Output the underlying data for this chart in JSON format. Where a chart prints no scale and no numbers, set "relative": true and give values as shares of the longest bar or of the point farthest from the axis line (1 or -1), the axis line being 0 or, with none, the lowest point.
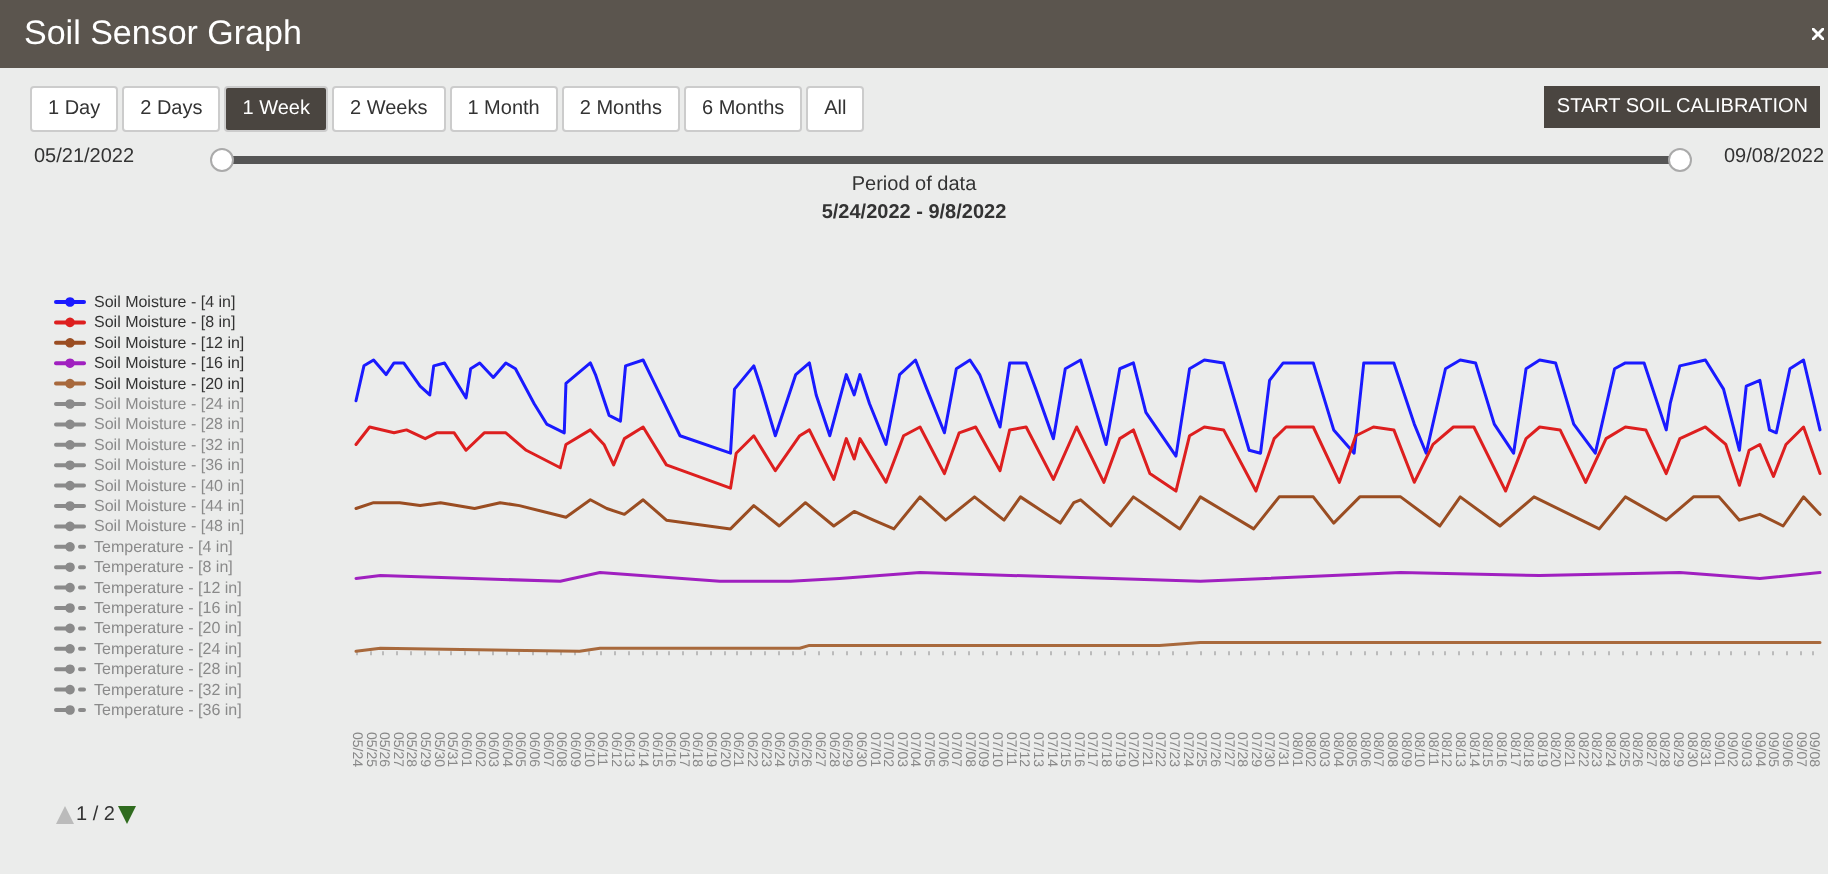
{
  "chart_data": {
    "type": "line",
    "title": "Soil Sensor Graph",
    "subtitle": "Period of data",
    "relative": true,
    "legend": "left",
    "grid": false,
    "marker": "none",
    "line_style": "solid",
    "annotations": [
      "1 Day",
      "2 Days",
      "1 Week",
      "2 Weeks",
      "1 Month",
      "2 Months",
      "6 Months",
      "All",
      "START SOIL CALIBRATION",
      "05/21/2022",
      "09/08/2022",
      "5/24/2022 - 9/8/2022",
      "1 / 2"
    ],
    "xlim": [
      "2022-05-24",
      "2022-09-08T12:00"
    ],
    "xticks": [
      {
        "value": "2022-05-24",
        "label": "05/24"
      },
      {
        "value": "2022-05-25",
        "label": "05/25"
      },
      {
        "value": "2022-05-26",
        "label": "05/26"
      },
      {
        "value": "2022-05-27",
        "label": "05/27"
      },
      {
        "value": "2022-05-28",
        "label": "05/28"
      },
      {
        "value": "2022-05-29",
        "label": "05/29"
      },
      {
        "value": "2022-05-30",
        "label": "05/30"
      },
      {
        "value": "2022-05-31",
        "label": "05/31"
      },
      {
        "value": "2022-06-01",
        "label": "06/01"
      },
      {
        "value": "2022-06-02",
        "label": "06/02"
      },
      {
        "value": "2022-06-03",
        "label": "06/03"
      },
      {
        "value": "2022-06-04",
        "label": "06/04"
      },
      {
        "value": "2022-06-05",
        "label": "06/05"
      },
      {
        "value": "2022-06-06",
        "label": "06/06"
      },
      {
        "value": "2022-06-07",
        "label": "06/07"
      },
      {
        "value": "2022-06-08",
        "label": "06/08"
      },
      {
        "value": "2022-06-09",
        "label": "06/09"
      },
      {
        "value": "2022-06-10",
        "label": "06/10"
      },
      {
        "value": "2022-06-11",
        "label": "06/11"
      },
      {
        "value": "2022-06-12",
        "label": "06/12"
      },
      {
        "value": "2022-06-13",
        "label": "06/13"
      },
      {
        "value": "2022-06-14",
        "label": "06/14"
      },
      {
        "value": "2022-06-15",
        "label": "06/15"
      },
      {
        "value": "2022-06-16",
        "label": "06/16"
      },
      {
        "value": "2022-06-17",
        "label": "06/17"
      },
      {
        "value": "2022-06-18",
        "label": "06/18"
      },
      {
        "value": "2022-06-19",
        "label": "06/19"
      },
      {
        "value": "2022-06-20",
        "label": "06/20"
      },
      {
        "value": "2022-06-21",
        "label": "06/21"
      },
      {
        "value": "2022-06-22",
        "label": "06/22"
      },
      {
        "value": "2022-06-23",
        "label": "06/23"
      },
      {
        "value": "2022-06-24",
        "label": "06/24"
      },
      {
        "value": "2022-06-25",
        "label": "06/25"
      },
      {
        "value": "2022-06-26",
        "label": "06/26"
      },
      {
        "value": "2022-06-27",
        "label": "06/27"
      },
      {
        "value": "2022-06-28",
        "label": "06/28"
      },
      {
        "value": "2022-06-29",
        "label": "06/29"
      },
      {
        "value": "2022-06-30",
        "label": "06/30"
      },
      {
        "value": "2022-07-01",
        "label": "07/01"
      },
      {
        "value": "2022-07-02",
        "label": "07/02"
      },
      {
        "value": "2022-07-03",
        "label": "07/03"
      },
      {
        "value": "2022-07-04",
        "label": "07/04"
      },
      {
        "value": "2022-07-05",
        "label": "07/05"
      },
      {
        "value": "2022-07-06",
        "label": "07/06"
      },
      {
        "value": "2022-07-07",
        "label": "07/07"
      },
      {
        "value": "2022-07-08",
        "label": "07/08"
      },
      {
        "value": "2022-07-09",
        "label": "07/09"
      },
      {
        "value": "2022-07-10",
        "label": "07/10"
      },
      {
        "value": "2022-07-11",
        "label": "07/11"
      },
      {
        "value": "2022-07-12",
        "label": "07/12"
      },
      {
        "value": "2022-07-13",
        "label": "07/13"
      },
      {
        "value": "2022-07-14",
        "label": "07/14"
      },
      {
        "value": "2022-07-15",
        "label": "07/15"
      },
      {
        "value": "2022-07-16",
        "label": "07/16"
      },
      {
        "value": "2022-07-17",
        "label": "07/17"
      },
      {
        "value": "2022-07-18",
        "label": "07/18"
      },
      {
        "value": "2022-07-19",
        "label": "07/19"
      },
      {
        "value": "2022-07-20",
        "label": "07/20"
      },
      {
        "value": "2022-07-21",
        "label": "07/21"
      },
      {
        "value": "2022-07-22",
        "label": "07/22"
      },
      {
        "value": "2022-07-23",
        "label": "07/23"
      },
      {
        "value": "2022-07-24",
        "label": "07/24"
      },
      {
        "value": "2022-07-25",
        "label": "07/25"
      },
      {
        "value": "2022-07-26",
        "label": "07/26"
      },
      {
        "value": "2022-07-27",
        "label": "07/27"
      },
      {
        "value": "2022-07-28",
        "label": "07/28"
      },
      {
        "value": "2022-07-29",
        "label": "07/29"
      },
      {
        "value": "2022-07-30",
        "label": "07/30"
      },
      {
        "value": "2022-07-31",
        "label": "07/31"
      },
      {
        "value": "2022-08-01",
        "label": "08/01"
      },
      {
        "value": "2022-08-02",
        "label": "08/02"
      },
      {
        "value": "2022-08-03",
        "label": "08/03"
      },
      {
        "value": "2022-08-04",
        "label": "08/04"
      },
      {
        "value": "2022-08-05",
        "label": "08/05"
      },
      {
        "value": "2022-08-06",
        "label": "08/06"
      },
      {
        "value": "2022-08-07",
        "label": "08/07"
      },
      {
        "value": "2022-08-08",
        "label": "08/08"
      },
      {
        "value": "2022-08-09",
        "label": "08/09"
      },
      {
        "value": "2022-08-10",
        "label": "08/10"
      },
      {
        "value": "2022-08-11",
        "label": "08/11"
      },
      {
        "value": "2022-08-12",
        "label": "08/12"
      },
      {
        "value": "2022-08-13",
        "label": "08/13"
      },
      {
        "value": "2022-08-14",
        "label": "08/14"
      },
      {
        "value": "2022-08-15",
        "label": "08/15"
      },
      {
        "value": "2022-08-16",
        "label": "08/16"
      },
      {
        "value": "2022-08-17",
        "label": "08/17"
      },
      {
        "value": "2022-08-18",
        "label": "08/18"
      },
      {
        "value": "2022-08-19",
        "label": "08/19"
      },
      {
        "value": "2022-08-20",
        "label": "08/20"
      },
      {
        "value": "2022-08-21",
        "label": "08/21"
      },
      {
        "value": "2022-08-22",
        "label": "08/22"
      },
      {
        "value": "2022-08-23",
        "label": "08/23"
      },
      {
        "value": "2022-08-24",
        "label": "08/24"
      },
      {
        "value": "2022-08-25",
        "label": "08/25"
      },
      {
        "value": "2022-08-26",
        "label": "08/26"
      },
      {
        "value": "2022-08-27",
        "label": "08/27"
      },
      {
        "value": "2022-08-28",
        "label": "08/28"
      },
      {
        "value": "2022-08-29",
        "label": "08/29"
      },
      {
        "value": "2022-08-30",
        "label": "08/30"
      },
      {
        "value": "2022-08-31",
        "label": "08/31"
      },
      {
        "value": "2022-09-01",
        "label": "09/01"
      },
      {
        "value": "2022-09-02",
        "label": "09/02"
      },
      {
        "value": "2022-09-03",
        "label": "09/03"
      },
      {
        "value": "2022-09-04",
        "label": "09/04"
      },
      {
        "value": "2022-09-05",
        "label": "09/05"
      },
      {
        "value": "2022-09-06",
        "label": "09/06"
      },
      {
        "value": "2022-09-07",
        "label": "09/07"
      },
      {
        "value": "2022-09-08",
        "label": "09/08"
      }
    ],
    "series": [
      {
        "name": "Soil Moisture - [4 in]",
        "color": "#1a1aff",
        "x": [
          "2022-05-24T00:00",
          "2022-05-24T14:00",
          "2022-05-25T07:00",
          "2022-05-26T05:00",
          "2022-05-26T19:00",
          "2022-05-27T12:00",
          "2022-05-28T17:00",
          "2022-05-29T10:00",
          "2022-05-29T17:00",
          "2022-05-30T12:00",
          "2022-05-31T07:00",
          "2022-06-01T02:00",
          "2022-06-01T10:00",
          "2022-06-02T02:00",
          "2022-06-03T02:00",
          "2022-06-04T00:00",
          "2022-06-04T17:00",
          "2022-06-06T02:00",
          "2022-06-07T00:00",
          "2022-06-08T07:00",
          "2022-06-08T10:00",
          "2022-06-10T05:00",
          "2022-06-10T14:00",
          "2022-06-11T14:00",
          "2022-06-12T10:00",
          "2022-06-12T19:00",
          "2022-06-14T02:00",
          "2022-06-14T22:00",
          "2022-06-16T19:00",
          "2022-06-20T12:00",
          "2022-06-20T19:00",
          "2022-06-22T05:00",
          "2022-06-22T17:00",
          "2022-06-23T19:00",
          "2022-06-25T07:00",
          "2022-06-26T07:00",
          "2022-06-26T19:00",
          "2022-06-27T19:00",
          "2022-06-29T00:00",
          "2022-06-29T14:00",
          "2022-06-30T00:00",
          "2022-06-30T17:00",
          "2022-07-01T22:00",
          "2022-07-02T22:00",
          "2022-07-04T02:00",
          "2022-07-04T22:00",
          "2022-07-06T05:00",
          "2022-07-07T02:00",
          "2022-07-08T02:00",
          "2022-07-08T19:00",
          "2022-07-10T07:00",
          "2022-07-11T00:00",
          "2022-07-12T05:00",
          "2022-07-12T22:00",
          "2022-07-14T05:00",
          "2022-07-15T02:00",
          "2022-07-16T05:00",
          "2022-07-18T02:00",
          "2022-07-19T02:00",
          "2022-07-20T02:00",
          "2022-07-21T00:00",
          "2022-07-23T05:00",
          "2022-07-24T05:00",
          "2022-07-25T07:00",
          "2022-07-26T17:00",
          "2022-07-28T14:00",
          "2022-07-29T10:00",
          "2022-07-30T02:00",
          "2022-07-31T02:00",
          "2022-08-02T07:00",
          "2022-08-03T19:00",
          "2022-08-05T07:00",
          "2022-08-06T00:00",
          "2022-08-08T05:00",
          "2022-08-09T17:00",
          "2022-08-10T14:00",
          "2022-08-12T00:00",
          "2022-08-13T02:00",
          "2022-08-14T05:00",
          "2022-08-15T14:00",
          "2022-08-17T00:00",
          "2022-08-17T22:00",
          "2022-08-18T22:00",
          "2022-08-20T02:00",
          "2022-08-21T10:00",
          "2022-08-23T00:00",
          "2022-08-24T10:00",
          "2022-08-25T05:00",
          "2022-08-26T14:00",
          "2022-08-28T05:00",
          "2022-08-28T12:00",
          "2022-08-29T05:00",
          "2022-08-31T02:00",
          "2022-09-01T10:00",
          "2022-09-02T14:00",
          "2022-09-03T02:00",
          "2022-09-04T02:00",
          "2022-09-04T19:00",
          "2022-09-05T07:00",
          "2022-09-06T07:00",
          "2022-09-07T07:00",
          "2022-09-08T12:00"
        ],
        "values": [
          0.86,
          0.98,
          1.0,
          0.95,
          0.99,
          0.99,
          0.91,
          0.88,
          0.98,
          0.99,
          0.93,
          0.87,
          0.97,
          0.99,
          0.94,
          0.99,
          0.97,
          0.85,
          0.78,
          0.75,
          0.92,
          0.99,
          0.95,
          0.81,
          0.79,
          0.98,
          1.0,
          0.92,
          0.74,
          0.68,
          0.9,
          0.98,
          0.91,
          0.74,
          0.95,
          0.99,
          0.88,
          0.74,
          0.95,
          0.88,
          0.95,
          0.85,
          0.71,
          0.95,
          1.0,
          0.9,
          0.75,
          0.97,
          1.0,
          0.95,
          0.77,
          0.99,
          0.99,
          0.9,
          0.73,
          0.97,
          1.0,
          0.71,
          0.97,
          0.99,
          0.82,
          0.67,
          0.97,
          1.0,
          0.99,
          0.69,
          0.68,
          0.93,
          0.99,
          0.99,
          0.76,
          0.68,
          0.99,
          0.99,
          0.78,
          0.68,
          0.97,
          1.0,
          0.99,
          0.78,
          0.68,
          0.97,
          1.0,
          0.99,
          0.78,
          0.68,
          0.97,
          0.99,
          0.99,
          0.76,
          0.85,
          0.98,
          1.0,
          0.9,
          0.69,
          0.91,
          0.93,
          0.76,
          0.75,
          0.97,
          1.0,
          0.76
        ]
      },
      {
        "name": "Soil Moisture - [8 in]",
        "color": "#dd1f1f",
        "x": [
          "2022-05-24T00:00",
          "2022-05-25T00:00",
          "2022-05-26T19:00",
          "2022-05-27T17:00",
          "2022-05-29T02:00",
          "2022-05-29T22:00",
          "2022-05-31T05:00",
          "2022-06-01T02:00",
          "2022-06-02T10:00",
          "2022-06-04T00:00",
          "2022-06-05T12:00",
          "2022-06-08T00:00",
          "2022-06-08T10:00",
          "2022-06-10T05:00",
          "2022-06-11T05:00",
          "2022-06-11T22:00",
          "2022-06-12T17:00",
          "2022-06-14T02:00",
          "2022-06-15T19:00",
          "2022-06-20T12:00",
          "2022-06-20T22:00",
          "2022-06-22T05:00",
          "2022-06-23T19:00",
          "2022-06-25T14:00",
          "2022-06-26T07:00",
          "2022-06-28T02:00",
          "2022-06-29T00:00",
          "2022-06-29T14:00",
          "2022-06-30T00:00",
          "2022-07-01T22:00",
          "2022-07-03T05:00",
          "2022-07-04T10:00",
          "2022-07-06T05:00",
          "2022-07-07T07:00",
          "2022-07-08T12:00",
          "2022-07-10T07:00",
          "2022-07-11T00:00",
          "2022-07-12T05:00",
          "2022-07-14T05:00",
          "2022-07-15T22:00",
          "2022-07-17T22:00",
          "2022-07-19T02:00",
          "2022-07-20T02:00",
          "2022-07-21T07:00",
          "2022-07-23T05:00",
          "2022-07-24T05:00",
          "2022-07-25T07:00",
          "2022-07-26T17:00",
          "2022-07-29T02:00",
          "2022-07-30T10:00",
          "2022-07-31T07:00",
          "2022-08-02T07:00",
          "2022-08-04T05:00",
          "2022-08-05T10:00",
          "2022-08-06T17:00",
          "2022-08-08T05:00",
          "2022-08-09T17:00",
          "2022-08-11T02:00",
          "2022-08-12T14:00",
          "2022-08-14T02:00",
          "2022-08-16T10:00",
          "2022-08-17T22:00",
          "2022-08-18T22:00",
          "2022-08-20T10:00",
          "2022-08-22T07:00",
          "2022-08-23T19:00",
          "2022-08-25T05:00",
          "2022-08-26T17:00",
          "2022-08-28T05:00",
          "2022-08-29T05:00",
          "2022-08-31T02:00",
          "2022-09-01T14:00",
          "2022-09-02T14:00",
          "2022-09-03T07:00",
          "2022-09-04T02:00",
          "2022-09-05T02:00",
          "2022-09-06T00:00",
          "2022-09-07T07:00",
          "2022-09-08T12:00"
        ],
        "values": [
          0.71,
          0.77,
          0.75,
          0.76,
          0.73,
          0.75,
          0.75,
          0.69,
          0.75,
          0.75,
          0.69,
          0.63,
          0.71,
          0.76,
          0.71,
          0.64,
          0.73,
          0.77,
          0.64,
          0.56,
          0.68,
          0.74,
          0.62,
          0.74,
          0.76,
          0.59,
          0.73,
          0.66,
          0.73,
          0.58,
          0.74,
          0.77,
          0.61,
          0.75,
          0.77,
          0.62,
          0.76,
          0.77,
          0.59,
          0.77,
          0.58,
          0.73,
          0.76,
          0.61,
          0.55,
          0.74,
          0.77,
          0.76,
          0.55,
          0.73,
          0.77,
          0.77,
          0.58,
          0.74,
          0.77,
          0.76,
          0.58,
          0.71,
          0.77,
          0.77,
          0.55,
          0.73,
          0.77,
          0.76,
          0.58,
          0.73,
          0.77,
          0.76,
          0.61,
          0.73,
          0.77,
          0.71,
          0.57,
          0.69,
          0.71,
          0.6,
          0.71,
          0.77,
          0.61
        ]
      },
      {
        "name": "Soil Moisture - [12 in]",
        "color": "#9a4d22",
        "x": [
          "2022-05-24T00:00",
          "2022-05-25T07:00",
          "2022-05-27T05:00",
          "2022-05-28T17:00",
          "2022-05-30T05:00",
          "2022-06-01T17:00",
          "2022-06-03T14:00",
          "2022-06-05T00:00",
          "2022-06-08T10:00",
          "2022-06-10T05:00",
          "2022-06-11T10:00",
          "2022-06-12T17:00",
          "2022-06-14T02:00",
          "2022-06-15T19:00",
          "2022-06-20T12:00",
          "2022-06-22T05:00",
          "2022-06-24T02:00",
          "2022-06-26T00:00",
          "2022-06-28T02:00",
          "2022-06-29T14:00",
          "2022-07-01T00:00",
          "2022-07-02T12:00",
          "2022-07-04T10:00",
          "2022-07-06T07:00",
          "2022-07-08T10:00",
          "2022-07-10T14:00",
          "2022-07-11T19:00",
          "2022-07-14T17:00",
          "2022-07-15T17:00",
          "2022-07-16T05:00",
          "2022-07-18T10:00",
          "2022-07-20T02:00",
          "2022-07-23T12:00",
          "2022-07-25T00:00",
          "2022-07-28T22:00",
          "2022-07-30T19:00",
          "2022-08-02T07:00",
          "2022-08-03T19:00",
          "2022-08-05T17:00",
          "2022-08-08T17:00",
          "2022-08-11T14:00",
          "2022-08-13T02:00",
          "2022-08-16T00:00",
          "2022-08-18T12:00",
          "2022-08-23T07:00",
          "2022-08-25T05:00",
          "2022-08-28T05:00",
          "2022-08-30T05:00",
          "2022-09-01T02:00",
          "2022-09-02T14:00",
          "2022-09-04T02:00",
          "2022-09-05T19:00",
          "2022-09-07T07:00",
          "2022-09-08T12:00"
        ],
        "values": [
          0.49,
          0.51,
          0.51,
          0.5,
          0.51,
          0.49,
          0.51,
          0.5,
          0.46,
          0.52,
          0.49,
          0.47,
          0.52,
          0.45,
          0.42,
          0.5,
          0.43,
          0.51,
          0.43,
          0.48,
          0.45,
          0.42,
          0.53,
          0.45,
          0.53,
          0.45,
          0.53,
          0.44,
          0.51,
          0.52,
          0.43,
          0.53,
          0.42,
          0.53,
          0.42,
          0.53,
          0.53,
          0.44,
          0.53,
          0.53,
          0.43,
          0.53,
          0.43,
          0.53,
          0.42,
          0.53,
          0.45,
          0.53,
          0.53,
          0.45,
          0.47,
          0.43,
          0.53,
          0.47
        ]
      },
      {
        "name": "Soil Moisture - [16 in]",
        "color": "#a020c0",
        "x": [
          "2022-05-24T00:00",
          "2022-05-25T19:00",
          "2022-06-08T00:00",
          "2022-06-10T22:00",
          "2022-06-19T17:00",
          "2022-06-24T22:00",
          "2022-06-28T12:00",
          "2022-07-04T10:00",
          "2022-07-25T00:00",
          "2022-08-08T17:00",
          "2022-08-18T22:00",
          "2022-08-29T05:00",
          "2022-09-04T02:00",
          "2022-09-08T12:00"
        ],
        "values": [
          0.25,
          0.26,
          0.24,
          0.27,
          0.24,
          0.24,
          0.25,
          0.27,
          0.24,
          0.27,
          0.26,
          0.27,
          0.25,
          0.27
        ]
      },
      {
        "name": "Soil Moisture - [20 in]",
        "color": "#a8693c",
        "x": [
          "2022-05-24T00:00",
          "2022-05-25T19:00",
          "2022-06-09T10:00",
          "2022-06-10T22:00",
          "2022-06-25T14:00",
          "2022-06-26T07:00",
          "2022-07-22T00:00",
          "2022-07-25T00:00",
          "2022-08-23T07:00",
          "2022-09-08T12:00"
        ],
        "values": [
          0,
          0.01,
          0,
          0.01,
          0.01,
          0.02,
          0.02,
          0.03,
          0.03,
          0.03
        ]
      },
      {
        "name": "Soil Moisture - [24 in]",
        "color": "#8a8a8a"
      },
      {
        "name": "Soil Moisture - [28 in]",
        "color": "#8a8a8a"
      },
      {
        "name": "Soil Moisture - [32 in]",
        "color": "#8a8a8a"
      },
      {
        "name": "Soil Moisture - [36 in]",
        "color": "#8a8a8a"
      },
      {
        "name": "Soil Moisture - [40 in]",
        "color": "#8a8a8a"
      },
      {
        "name": "Soil Moisture - [44 in]",
        "color": "#8a8a8a"
      },
      {
        "name": "Soil Moisture - [48 in]",
        "color": "#8a8a8a"
      },
      {
        "name": "Temperature - [4 in]",
        "color": "#8a8a8a",
        "line_style": "dashed"
      },
      {
        "name": "Temperature - [8 in]",
        "color": "#8a8a8a",
        "line_style": "dashed"
      },
      {
        "name": "Temperature - [12 in]",
        "color": "#8a8a8a",
        "line_style": "dashed"
      },
      {
        "name": "Temperature - [16 in]",
        "color": "#8a8a8a",
        "line_style": "dashed"
      },
      {
        "name": "Temperature - [20 in]",
        "color": "#8a8a8a",
        "line_style": "dashed"
      },
      {
        "name": "Temperature - [24 in]",
        "color": "#8a8a8a",
        "line_style": "dashed"
      },
      {
        "name": "Temperature - [28 in]",
        "color": "#8a8a8a",
        "line_style": "dashed"
      },
      {
        "name": "Temperature - [32 in]",
        "color": "#8a8a8a",
        "line_style": "dashed"
      },
      {
        "name": "Temperature - [36 in]",
        "color": "#8a8a8a",
        "line_style": "dashed"
      }
    ]
  }
}
